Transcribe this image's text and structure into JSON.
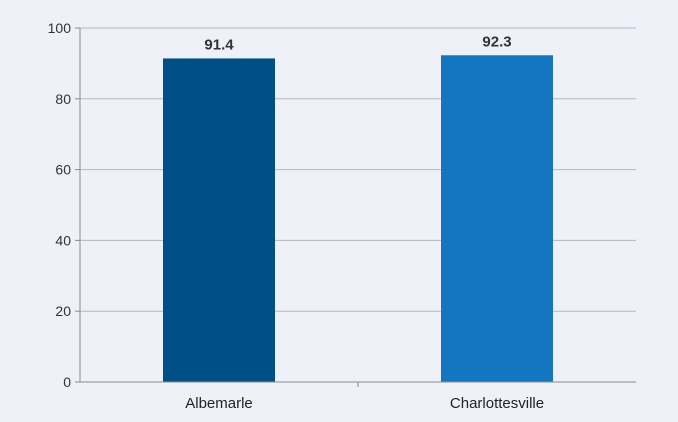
{
  "chart_data": {
    "type": "bar",
    "title": "",
    "xlabel": "",
    "ylabel": "",
    "categories": [
      "Albemarle",
      "Charlottesville"
    ],
    "values": [
      91.4,
      92.3
    ],
    "value_labels": [
      "91.4",
      "92.3"
    ],
    "bar_colors": [
      "#004f87",
      "#1475c0"
    ],
    "ylim": [
      0,
      100
    ],
    "yticks": [
      0,
      20,
      40,
      60,
      80,
      100
    ],
    "grid": true,
    "legend": "none"
  }
}
